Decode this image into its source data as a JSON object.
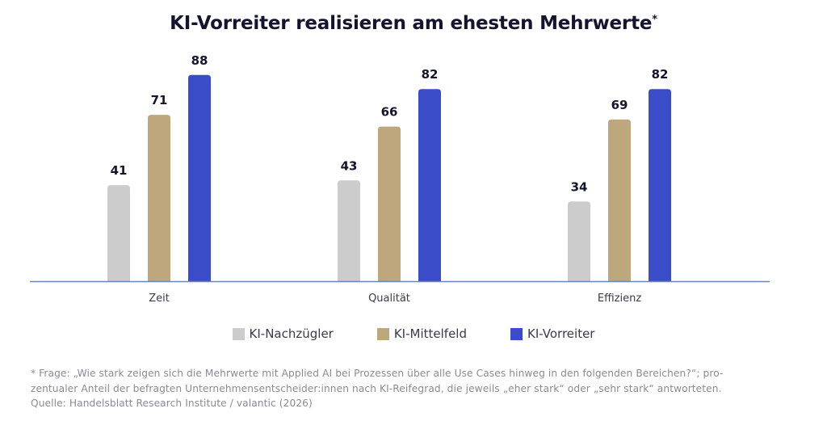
{
  "chart_data": {
    "type": "bar",
    "title": "KI-Vorreiter realisieren am ehesten Mehrwerte",
    "title_marker": "*",
    "categories": [
      "Zeit",
      "Qualität",
      "Effizienz"
    ],
    "series": [
      {
        "name": "KI-Nachzügler",
        "color": "#cccccc",
        "values": [
          41,
          43,
          34
        ]
      },
      {
        "name": "KI-Mittelfeld",
        "color": "#bfa77d",
        "values": [
          71,
          66,
          69
        ]
      },
      {
        "name": "KI-Vorreiter",
        "color": "#3b4cc9",
        "values": [
          88,
          82,
          82
        ]
      }
    ],
    "xlabel": "",
    "ylabel": "",
    "ylim": [
      0,
      100
    ],
    "grid": false,
    "data_labels": true,
    "legend_position": "bottom",
    "axis_color": "#6f86b0",
    "label_color": "#14142e"
  },
  "footnote": {
    "lines": [
      "* Frage: „Wie stark zeigen sich die Mehrwerte mit Applied AI bei Prozessen über alle Use Cases hinweg in den folgenden Bereichen?“; pro-",
      "zentualer Anteil der befragten Unternehmensentscheider:innen nach KI-Reifegrad, die jeweils „eher stark“ oder „sehr stark“ antworteten.",
      "Quelle: Handelsblatt Research Institute / valantic (2026)"
    ]
  }
}
